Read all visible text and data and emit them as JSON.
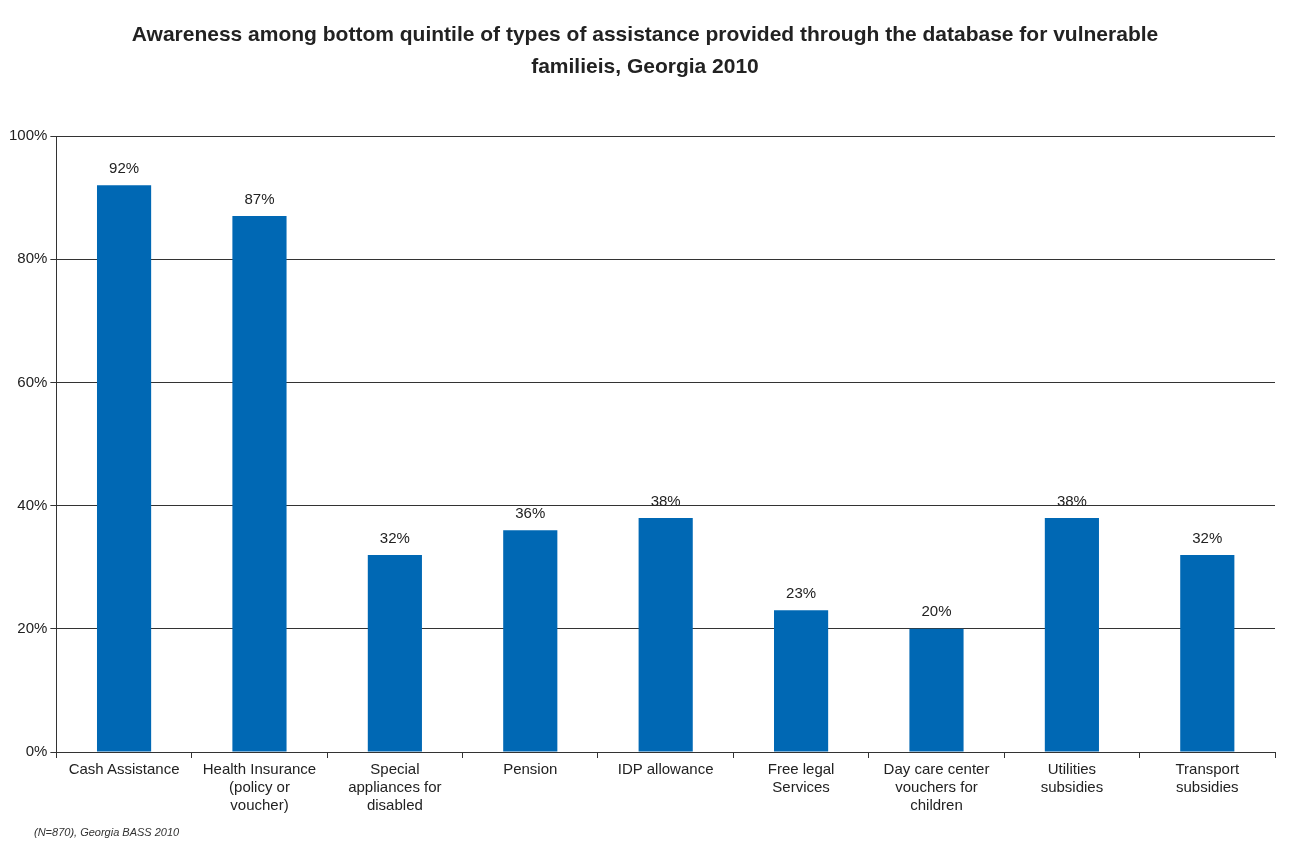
{
  "chart_data": {
    "type": "bar",
    "title": "Awareness among bottom quintile of types of assistance provided through the database for vulnerable familieis, Georgia 2010",
    "categories": [
      "Cash Assistance",
      "Health Insurance (policy or voucher)",
      "Special appliances for disabled",
      "Pension",
      "IDP allowance",
      "Free legal Services",
      "Day care center vouchers for children",
      "Utilities subsidies",
      "Transport subsidies"
    ],
    "values": [
      92,
      87,
      32,
      36,
      38,
      23,
      20,
      38,
      32
    ],
    "value_labels": [
      "92%",
      "87%",
      "32%",
      "36%",
      "38%",
      "23%",
      "20%",
      "38%",
      "32%"
    ],
    "color": "#0068b4",
    "ylim": [
      0,
      100
    ],
    "yticks": [
      {
        "value": 0,
        "label": "0%"
      },
      {
        "value": 20,
        "label": "20%"
      },
      {
        "value": 40,
        "label": "40%"
      },
      {
        "value": 60,
        "label": "60%"
      },
      {
        "value": 80,
        "label": "80%"
      },
      {
        "value": 100,
        "label": "100%"
      }
    ],
    "grid": "y",
    "annotations": [
      "(N=870), Georgia BASS 2010"
    ]
  }
}
